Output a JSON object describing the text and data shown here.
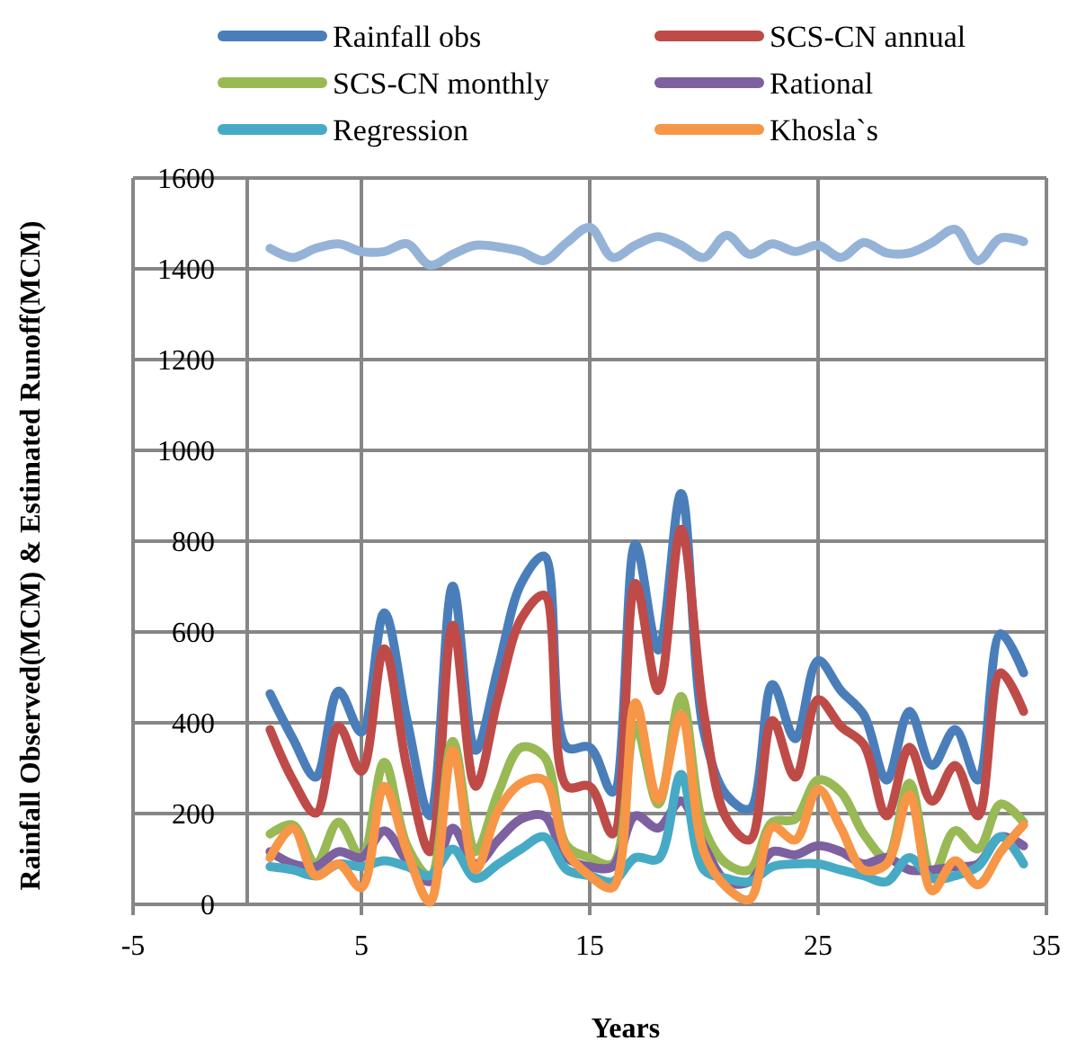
{
  "chart_data": {
    "type": "line",
    "xlabel": "Years",
    "ylabel": "Rainfall Observed(MCM) & Estimated Runoff(MCM)",
    "x": [
      1,
      2,
      3,
      4,
      5,
      6,
      7,
      8,
      9,
      10,
      11,
      12,
      13,
      14,
      15,
      16,
      17,
      18,
      19,
      20,
      21,
      22,
      23,
      24,
      25,
      26,
      27,
      28,
      29,
      30,
      31,
      32,
      33,
      34
    ],
    "xlim": [
      -5,
      35
    ],
    "xticks": [
      -5,
      5,
      15,
      25,
      35
    ],
    "ylim": [
      0,
      1600
    ],
    "yticks": [
      0,
      200,
      400,
      600,
      800,
      1000,
      1200,
      1400,
      1600
    ],
    "grid": true,
    "legend": "top",
    "line_style": "solid",
    "marker": "none",
    "series": [
      {
        "name": "Rainfall obs",
        "color": "#4a7ebb",
        "values": [
          464,
          365,
          280,
          470,
          379,
          642,
          405,
          195,
          701,
          339,
          523,
          707,
          767,
          346,
          346,
          247,
          793,
          560,
          905,
          380,
          240,
          210,
          484,
          365,
          537,
          471,
          418,
          274,
          425,
          306,
          385,
          274,
          596,
          510
        ]
      },
      {
        "name": "SCS-CN annual",
        "color": "#be4b48",
        "values": [
          385,
          274,
          201,
          392,
          293,
          563,
          300,
          116,
          615,
          260,
          458,
          629,
          681,
          260,
          260,
          155,
          707,
          471,
          826,
          420,
          188,
          142,
          405,
          280,
          451,
          392,
          352,
          195,
          346,
          227,
          306,
          195,
          510,
          425
        ]
      },
      {
        "name": "SCS-CN monthly",
        "color": "#98b954",
        "values": [
          155,
          175,
          89,
          181,
          103,
          313,
          129,
          63,
          359,
          116,
          247,
          346,
          326,
          129,
          103,
          89,
          392,
          221,
          458,
          168,
          89,
          76,
          181,
          188,
          274,
          247,
          155,
          103,
          267,
          63,
          162,
          122,
          221,
          181
        ]
      },
      {
        "name": "Rational",
        "color": "#7d60a0",
        "values": [
          116,
          89,
          83,
          116,
          103,
          162,
          96,
          50,
          168,
          89,
          142,
          188,
          195,
          103,
          83,
          83,
          195,
          168,
          228,
          129,
          50,
          50,
          116,
          109,
          129,
          116,
          89,
          103,
          76,
          76,
          83,
          89,
          149,
          129
        ]
      },
      {
        "name": "Regression",
        "color": "#46aac5",
        "values": [
          83,
          76,
          63,
          89,
          83,
          96,
          83,
          63,
          122,
          57,
          89,
          122,
          149,
          76,
          63,
          50,
          103,
          100,
          286,
          76,
          57,
          50,
          83,
          89,
          89,
          76,
          63,
          50,
          103,
          57,
          63,
          83,
          149,
          89
        ]
      },
      {
        "name": "Khosla`s",
        "color": "#f79646",
        "values": [
          103,
          168,
          63,
          89,
          37,
          260,
          116,
          5,
          339,
          76,
          208,
          267,
          274,
          116,
          63,
          37,
          444,
          230,
          418,
          116,
          37,
          11,
          170,
          142,
          254,
          168,
          76,
          89,
          241,
          30,
          96,
          43,
          116,
          175
        ]
      },
      {
        "color": "#95b3d7",
        "values": [
          1445,
          1425,
          1445,
          1455,
          1438,
          1438,
          1455,
          1408,
          1432,
          1452,
          1448,
          1438,
          1418,
          1458,
          1491,
          1425,
          1452,
          1471,
          1452,
          1425,
          1474,
          1432,
          1455,
          1438,
          1452,
          1425,
          1458,
          1435,
          1435,
          1458,
          1487,
          1418,
          1468,
          1460
        ]
      }
    ]
  }
}
